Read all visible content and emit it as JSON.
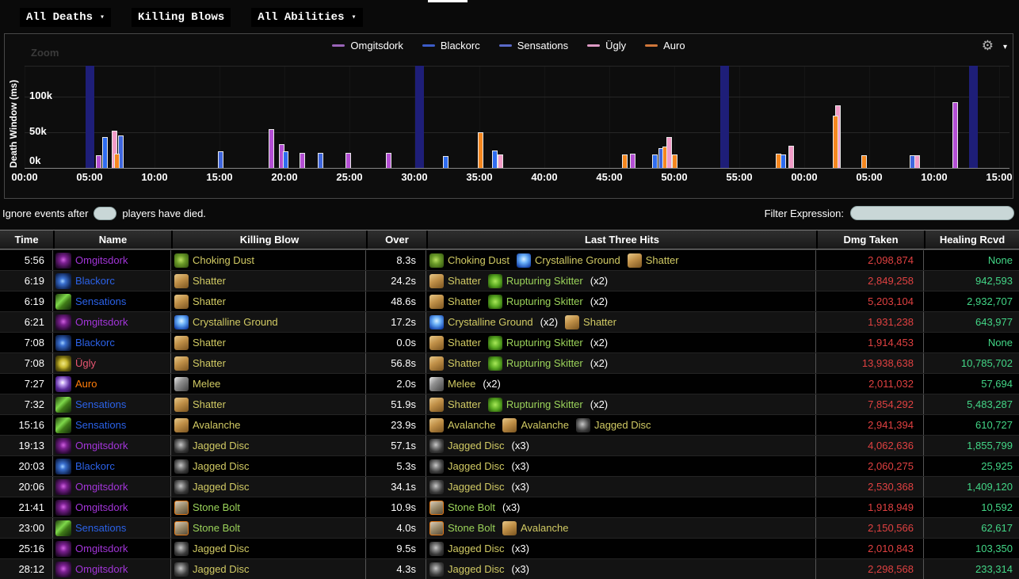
{
  "icons": {
    "gear": "⚙",
    "caret_down": "▾"
  },
  "menu": {
    "items": [
      {
        "label": "All Deaths",
        "caret": true
      },
      {
        "label": "Killing Blows",
        "caret": false
      },
      {
        "label": "All Abilities",
        "caret": true
      }
    ]
  },
  "chart": {
    "zoom_label": "Zoom",
    "y_axis_title": "Death Window (ms)",
    "legend": [
      {
        "name": "Omgitsdork",
        "color": "#9a64b8"
      },
      {
        "name": "Blackorc",
        "color": "#3c5cc8"
      },
      {
        "name": "Sensations",
        "color": "#5a6ac8"
      },
      {
        "name": "Ügly",
        "color": "#dd9ac4"
      },
      {
        "name": "Auro",
        "color": "#d0773a"
      }
    ]
  },
  "chart_data": {
    "type": "bar",
    "ylabel": "Death Window (ms)",
    "ylim_ms": [
      0,
      144000
    ],
    "y_ticks": [
      {
        "label": "0k",
        "value_k": 0
      },
      {
        "label": "50k",
        "value_k": 50
      },
      {
        "label": "100k",
        "value_k": 100
      }
    ],
    "x_ticks": [
      "00:00",
      "05:00",
      "10:00",
      "15:00",
      "20:00",
      "25:00",
      "30:00",
      "35:00",
      "40:00",
      "45:00",
      "50:00",
      "55:00",
      "00:00",
      "05:00",
      "10:00",
      "15:00"
    ],
    "x_total_min": 75,
    "pull_marker_color": "#1e1e78",
    "pull_markers_min": [
      5.06,
      30.4,
      53.9,
      73.0
    ],
    "series_colors": {
      "Omgitsdork": "#b44fd4",
      "Blackorc": "#2e6cf0",
      "Sensations": "#3f66dd",
      "Ügly": "#f29cc8",
      "Auro": "#f5871f"
    },
    "bars": [
      {
        "t": 5.7,
        "v": 18,
        "s": "Omgitsdork"
      },
      {
        "t": 6.2,
        "v": 43,
        "s": "Blackorc"
      },
      {
        "t": 6.9,
        "v": 52,
        "s": "Ügly"
      },
      {
        "t": 7.4,
        "v": 46,
        "s": "Sensations"
      },
      {
        "t": 7.1,
        "v": 20,
        "s": "Auro"
      },
      {
        "t": 15.1,
        "v": 23,
        "s": "Sensations"
      },
      {
        "t": 19.0,
        "v": 55,
        "s": "Omgitsdork"
      },
      {
        "t": 19.8,
        "v": 33,
        "s": "Omgitsdork"
      },
      {
        "t": 20.1,
        "v": 24,
        "s": "Blackorc"
      },
      {
        "t": 21.4,
        "v": 21,
        "s": "Omgitsdork"
      },
      {
        "t": 22.8,
        "v": 21,
        "s": "Sensations"
      },
      {
        "t": 24.9,
        "v": 21,
        "s": "Omgitsdork"
      },
      {
        "t": 28.0,
        "v": 21,
        "s": "Omgitsdork"
      },
      {
        "t": 32.4,
        "v": 17,
        "s": "Blackorc"
      },
      {
        "t": 35.1,
        "v": 50,
        "s": "Auro"
      },
      {
        "t": 36.2,
        "v": 25,
        "s": "Blackorc"
      },
      {
        "t": 36.6,
        "v": 19,
        "s": "Ügly"
      },
      {
        "t": 46.2,
        "v": 19,
        "s": "Auro"
      },
      {
        "t": 46.8,
        "v": 20,
        "s": "Omgitsdork"
      },
      {
        "t": 48.5,
        "v": 19,
        "s": "Blackorc"
      },
      {
        "t": 49.0,
        "v": 28,
        "s": "Sensations"
      },
      {
        "t": 49.3,
        "v": 30,
        "s": "Auro"
      },
      {
        "t": 49.6,
        "v": 43,
        "s": "Ügly"
      },
      {
        "t": 50.0,
        "v": 19,
        "s": "Auro"
      },
      {
        "t": 58.0,
        "v": 20,
        "s": "Auro"
      },
      {
        "t": 58.4,
        "v": 19,
        "s": "Blackorc"
      },
      {
        "t": 59.0,
        "v": 31,
        "s": "Ügly"
      },
      {
        "t": 62.6,
        "v": 88,
        "s": "Ügly"
      },
      {
        "t": 62.4,
        "v": 74,
        "s": "Auro"
      },
      {
        "t": 64.6,
        "v": 18,
        "s": "Auro"
      },
      {
        "t": 68.3,
        "v": 18,
        "s": "Sensations"
      },
      {
        "t": 68.7,
        "v": 18,
        "s": "Ügly"
      },
      {
        "t": 71.6,
        "v": 93,
        "s": "Omgitsdork"
      }
    ]
  },
  "filter_bar": {
    "ignore_prefix": "Ignore events after",
    "ignore_value": "",
    "ignore_suffix": "players have died.",
    "filter_label": "Filter Expression:",
    "filter_value": ""
  },
  "table": {
    "columns": [
      "Time",
      "Name",
      "Killing Blow",
      "Over",
      "Last Three Hits",
      "Dmg Taken",
      "Healing Rcvd"
    ],
    "colors": {
      "ability_yellow": "#d2cb64",
      "ability_green": "#9bd35a",
      "damage": "#e04141",
      "healing": "#43d787",
      "time": "#ffffff"
    },
    "player_meta": {
      "Omgitsdork": {
        "color": "#a335d9",
        "icon": "class-omgitsdork"
      },
      "Blackorc": {
        "color": "#2b62e8",
        "icon": "class-blackorc"
      },
      "Sensations": {
        "color": "#2b62e8",
        "icon": "class-sensations"
      },
      "Ügly": {
        "color": "#e65570",
        "icon": "class-ugly"
      },
      "Auro": {
        "color": "#ff7d0a",
        "icon": "class-auro"
      }
    },
    "rows": [
      {
        "time": "5:56",
        "player": "Omgitsdork",
        "killing_blow": {
          "icon": "choking-dust",
          "label": "Choking Dust"
        },
        "over": "8.3s",
        "hits": [
          {
            "icon": "choking-dust",
            "label": "Choking Dust"
          },
          {
            "icon": "crystalline-ground",
            "label": "Crystalline Ground"
          },
          {
            "icon": "shatter",
            "label": "Shatter"
          }
        ],
        "dmg": "2,098,874",
        "heal": "None"
      },
      {
        "time": "6:19",
        "player": "Blackorc",
        "killing_blow": {
          "icon": "shatter",
          "label": "Shatter"
        },
        "over": "24.2s",
        "hits": [
          {
            "icon": "shatter",
            "label": "Shatter"
          },
          {
            "icon": "rupturing-skitter",
            "label": "Rupturing Skitter",
            "suffix": "(x2)",
            "green": true
          }
        ],
        "dmg": "2,849,258",
        "heal": "942,593"
      },
      {
        "time": "6:19",
        "player": "Sensations",
        "killing_blow": {
          "icon": "shatter",
          "label": "Shatter"
        },
        "over": "48.6s",
        "hits": [
          {
            "icon": "shatter",
            "label": "Shatter"
          },
          {
            "icon": "rupturing-skitter",
            "label": "Rupturing Skitter",
            "suffix": "(x2)",
            "green": true
          }
        ],
        "dmg": "5,203,104",
        "heal": "2,932,707"
      },
      {
        "time": "6:21",
        "player": "Omgitsdork",
        "killing_blow": {
          "icon": "crystalline-ground",
          "label": "Crystalline Ground"
        },
        "over": "17.2s",
        "hits": [
          {
            "icon": "crystalline-ground",
            "label": "Crystalline Ground",
            "suffix": "(x2)"
          },
          {
            "icon": "shatter",
            "label": "Shatter"
          }
        ],
        "dmg": "1,931,238",
        "heal": "643,977"
      },
      {
        "time": "7:08",
        "player": "Blackorc",
        "killing_blow": {
          "icon": "shatter",
          "label": "Shatter"
        },
        "over": "0.0s",
        "hits": [
          {
            "icon": "shatter",
            "label": "Shatter"
          },
          {
            "icon": "rupturing-skitter",
            "label": "Rupturing Skitter",
            "suffix": "(x2)",
            "green": true
          }
        ],
        "dmg": "1,914,453",
        "heal": "None"
      },
      {
        "time": "7:08",
        "player": "Ügly",
        "killing_blow": {
          "icon": "shatter",
          "label": "Shatter"
        },
        "over": "56.8s",
        "hits": [
          {
            "icon": "shatter",
            "label": "Shatter"
          },
          {
            "icon": "rupturing-skitter",
            "label": "Rupturing Skitter",
            "suffix": "(x2)",
            "green": true
          }
        ],
        "dmg": "13,938,638",
        "heal": "10,785,702"
      },
      {
        "time": "7:27",
        "player": "Auro",
        "killing_blow": {
          "icon": "melee",
          "label": "Melee"
        },
        "over": "2.0s",
        "hits": [
          {
            "icon": "melee",
            "label": "Melee",
            "suffix": "(x2)"
          }
        ],
        "dmg": "2,011,032",
        "heal": "57,694"
      },
      {
        "time": "7:32",
        "player": "Sensations",
        "killing_blow": {
          "icon": "shatter",
          "label": "Shatter"
        },
        "over": "51.9s",
        "hits": [
          {
            "icon": "shatter",
            "label": "Shatter"
          },
          {
            "icon": "rupturing-skitter",
            "label": "Rupturing Skitter",
            "suffix": "(x2)",
            "green": true
          }
        ],
        "dmg": "7,854,292",
        "heal": "5,483,287"
      },
      {
        "time": "15:16",
        "player": "Sensations",
        "killing_blow": {
          "icon": "avalanche",
          "label": "Avalanche"
        },
        "over": "23.9s",
        "hits": [
          {
            "icon": "avalanche",
            "label": "Avalanche"
          },
          {
            "icon": "avalanche",
            "label": "Avalanche"
          },
          {
            "icon": "jagged-disc",
            "label": "Jagged Disc"
          }
        ],
        "dmg": "2,941,394",
        "heal": "610,727"
      },
      {
        "time": "19:13",
        "player": "Omgitsdork",
        "killing_blow": {
          "icon": "jagged-disc",
          "label": "Jagged Disc"
        },
        "over": "57.1s",
        "hits": [
          {
            "icon": "jagged-disc",
            "label": "Jagged Disc",
            "suffix": "(x3)"
          }
        ],
        "dmg": "4,062,636",
        "heal": "1,855,799"
      },
      {
        "time": "20:03",
        "player": "Blackorc",
        "killing_blow": {
          "icon": "jagged-disc",
          "label": "Jagged Disc"
        },
        "over": "5.3s",
        "hits": [
          {
            "icon": "jagged-disc",
            "label": "Jagged Disc",
            "suffix": "(x3)"
          }
        ],
        "dmg": "2,060,275",
        "heal": "25,925"
      },
      {
        "time": "20:06",
        "player": "Omgitsdork",
        "killing_blow": {
          "icon": "jagged-disc",
          "label": "Jagged Disc"
        },
        "over": "34.1s",
        "hits": [
          {
            "icon": "jagged-disc",
            "label": "Jagged Disc",
            "suffix": "(x3)"
          }
        ],
        "dmg": "2,530,368",
        "heal": "1,409,120"
      },
      {
        "time": "21:41",
        "player": "Omgitsdork",
        "killing_blow": {
          "icon": "stone-bolt",
          "label": "Stone Bolt",
          "green": true
        },
        "over": "10.9s",
        "hits": [
          {
            "icon": "stone-bolt",
            "label": "Stone Bolt",
            "suffix": "(x3)",
            "green": true
          }
        ],
        "dmg": "1,918,949",
        "heal": "10,592"
      },
      {
        "time": "23:00",
        "player": "Sensations",
        "killing_blow": {
          "icon": "stone-bolt",
          "label": "Stone Bolt",
          "green": true
        },
        "over": "4.0s",
        "hits": [
          {
            "icon": "stone-bolt",
            "label": "Stone Bolt",
            "green": true
          },
          {
            "icon": "avalanche",
            "label": "Avalanche"
          }
        ],
        "dmg": "2,150,566",
        "heal": "62,617"
      },
      {
        "time": "25:16",
        "player": "Omgitsdork",
        "killing_blow": {
          "icon": "jagged-disc",
          "label": "Jagged Disc"
        },
        "over": "9.5s",
        "hits": [
          {
            "icon": "jagged-disc",
            "label": "Jagged Disc",
            "suffix": "(x3)"
          }
        ],
        "dmg": "2,010,843",
        "heal": "103,350"
      },
      {
        "time": "28:12",
        "player": "Omgitsdork",
        "killing_blow": {
          "icon": "jagged-disc",
          "label": "Jagged Disc"
        },
        "over": "4.3s",
        "hits": [
          {
            "icon": "jagged-disc",
            "label": "Jagged Disc",
            "suffix": "(x3)"
          }
        ],
        "dmg": "2,298,568",
        "heal": "233,314"
      }
    ]
  }
}
